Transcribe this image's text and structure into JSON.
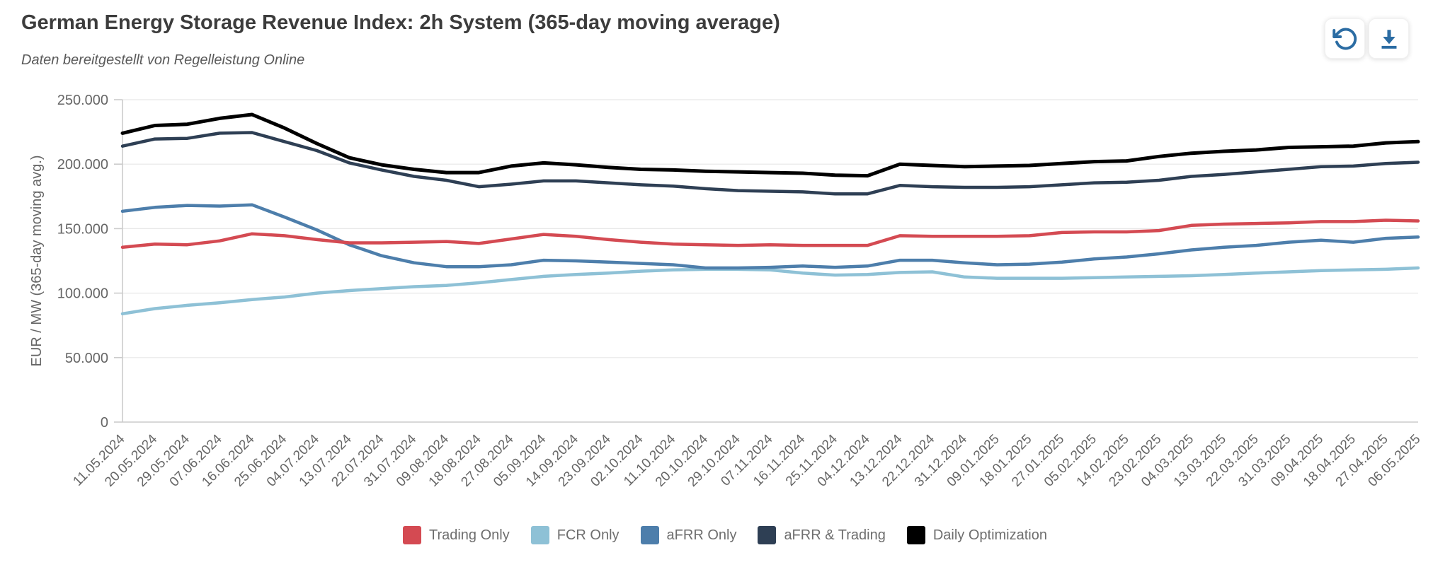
{
  "header": {
    "title": "German Energy Storage Revenue Index: 2h System (365-day moving average)",
    "subtitle": "Daten bereitgestellt von Regelleistung Online"
  },
  "toolbar": {
    "buttons": [
      {
        "id": "reset",
        "icon": "refresh-ccw-icon"
      },
      {
        "id": "download",
        "icon": "download-icon"
      }
    ],
    "icon_color": "#2b6ca3"
  },
  "chart_data": {
    "type": "line",
    "title": "German Energy Storage Revenue Index: 2h System (365-day moving average)",
    "xlabel": "",
    "ylabel": "EUR / MW (365-day moving avg.)",
    "ylim": [
      0,
      250000
    ],
    "yticks": [
      0,
      50000,
      100000,
      150000,
      200000,
      250000
    ],
    "ytick_labels": [
      "0",
      "50.000",
      "100.000",
      "150.000",
      "200.000",
      "250.000"
    ],
    "grid": true,
    "legend_position": "bottom",
    "x_label_rotation": -45,
    "categories": [
      "11.05.2024",
      "20.05.2024",
      "29.05.2024",
      "07.06.2024",
      "16.06.2024",
      "25.06.2024",
      "04.07.2024",
      "13.07.2024",
      "22.07.2024",
      "31.07.2024",
      "09.08.2024",
      "18.08.2024",
      "27.08.2024",
      "05.09.2024",
      "14.09.2024",
      "23.09.2024",
      "02.10.2024",
      "11.10.2024",
      "20.10.2024",
      "29.10.2024",
      "07.11.2024",
      "16.11.2024",
      "25.11.2024",
      "04.12.2024",
      "13.12.2024",
      "22.12.2024",
      "31.12.2024",
      "09.01.2025",
      "18.01.2025",
      "27.01.2025",
      "05.02.2025",
      "14.02.2025",
      "23.02.2025",
      "04.03.2025",
      "13.03.2025",
      "22.03.2025",
      "31.03.2025",
      "09.04.2025",
      "18.04.2025",
      "27.04.2025",
      "06.05.2025"
    ],
    "series": [
      {
        "name": "Trading Only",
        "color": "#d44a52",
        "width": 4.5,
        "values": [
          135500,
          138000,
          137500,
          140500,
          146000,
          144500,
          141500,
          139000,
          139000,
          139500,
          140000,
          138500,
          142000,
          145500,
          144000,
          141500,
          139500,
          138000,
          137500,
          137000,
          137500,
          137000,
          137000,
          137000,
          144500,
          144000,
          144000,
          144000,
          144500,
          147000,
          147500,
          147500,
          148500,
          152500,
          153500,
          154000,
          154500,
          155500,
          155500,
          156500,
          156000
        ]
      },
      {
        "name": "FCR Only",
        "color": "#8ec1d6",
        "width": 4.5,
        "values": [
          84000,
          88000,
          90500,
          92500,
          95000,
          97000,
          100000,
          102000,
          103500,
          105000,
          106000,
          108000,
          110500,
          113000,
          114500,
          115500,
          117000,
          118000,
          118500,
          118500,
          118000,
          115500,
          114000,
          114500,
          116000,
          116500,
          112500,
          111500,
          111500,
          111500,
          112000,
          112500,
          113000,
          113500,
          114500,
          115500,
          116500,
          117500,
          118000,
          118500,
          119500
        ]
      },
      {
        "name": "aFRR Only",
        "color": "#4d7eab",
        "width": 4.5,
        "values": [
          163500,
          166500,
          168000,
          167500,
          168500,
          159000,
          149000,
          137500,
          129000,
          123500,
          120500,
          120500,
          122000,
          125500,
          125000,
          124000,
          123000,
          122000,
          119500,
          119500,
          120000,
          121000,
          120000,
          121000,
          125500,
          125500,
          123500,
          122000,
          122500,
          124000,
          126500,
          128000,
          130500,
          133500,
          135500,
          137000,
          139500,
          141000,
          139500,
          142500,
          143500
        ]
      },
      {
        "name": "aFRR & Trading",
        "color": "#2e3f54",
        "width": 4.5,
        "values": [
          214000,
          219500,
          220000,
          224000,
          224500,
          217500,
          210500,
          201000,
          195500,
          190500,
          187500,
          182500,
          184500,
          187000,
          187000,
          185500,
          184000,
          183000,
          181000,
          179500,
          179000,
          178500,
          177000,
          177000,
          183500,
          182500,
          182000,
          182000,
          182500,
          184000,
          185500,
          186000,
          187500,
          190500,
          192000,
          194000,
          196000,
          198000,
          198500,
          200500,
          201500
        ]
      },
      {
        "name": "Daily Optimization",
        "color": "#000000",
        "width": 5,
        "values": [
          224000,
          230000,
          231000,
          235500,
          238500,
          228000,
          216000,
          205000,
          199500,
          196000,
          193500,
          193500,
          198500,
          201000,
          199500,
          197500,
          196000,
          195500,
          194500,
          194000,
          193500,
          193000,
          191500,
          191000,
          200000,
          199000,
          198000,
          198500,
          199000,
          200500,
          202000,
          202500,
          206000,
          208500,
          210000,
          211000,
          213000,
          213500,
          214000,
          216500,
          217500
        ]
      }
    ],
    "draw_order": [
      1,
      2,
      0,
      3,
      4
    ]
  },
  "style": {
    "grid_color": "#e7e7e7",
    "axis_color": "#cccccc",
    "label_color": "#666666"
  }
}
